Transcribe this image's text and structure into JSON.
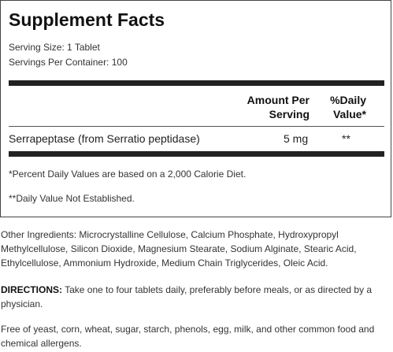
{
  "facts": {
    "title": "Supplement Facts",
    "serving_size": "Serving Size: 1 Tablet",
    "servings_per_container": "Servings Per Container: 100",
    "column_amount_line1": "Amount Per",
    "column_amount_line2": "Serving",
    "column_dv_line1": "%Daily",
    "column_dv_line2": "Value*",
    "rows": [
      {
        "name": "Serrapeptase (from Serratio peptidase)",
        "amount": "5 mg",
        "dv": "**"
      }
    ],
    "footnotes": [
      "*Percent Daily Values are based on a 2,000 Calorie Diet.",
      "**Daily Value Not Established."
    ]
  },
  "other_ingredients": "Other Ingredients: Microcrystalline Cellulose, Calcium Phosphate, Hydroxypropyl Methylcellulose, Silicon Dioxide, Magnesium Stearate, Sodium Alginate, Stearic Acid, Ethylcellulose, Ammonium Hydroxide, Medium Chain Triglycerides, Oleic Acid.",
  "directions": {
    "label": "DIRECTIONS:",
    "text": " Take one to four tablets daily, preferably before meals, or as directed by a physician."
  },
  "allergen_note": "Free of yeast, corn, wheat, sugar, starch, phenols, egg, milk, and other common food and chemical allergens."
}
